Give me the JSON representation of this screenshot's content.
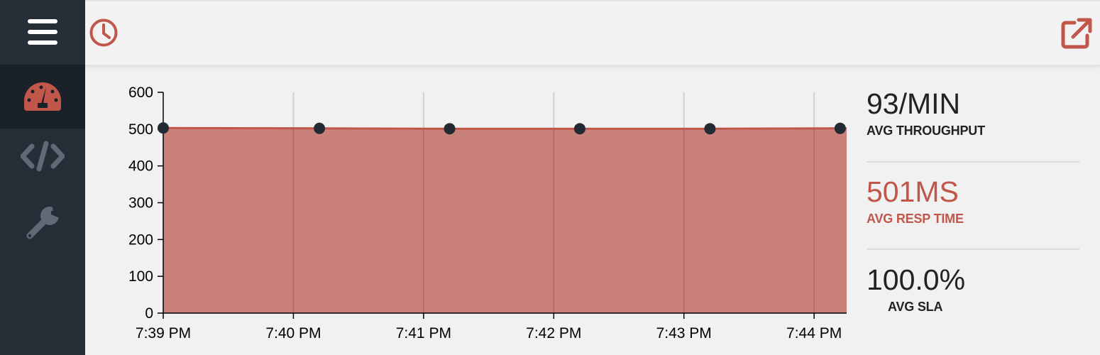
{
  "colors": {
    "accent": "#c0574a",
    "sidebar_bg": "#252d36",
    "sidebar_active_bg": "#1b2128",
    "area_fill": "#c9817a",
    "point": "#222a33",
    "muted_icon": "#606a74"
  },
  "sidebar": {
    "menu_icon": "hamburger-menu-icon",
    "items": [
      {
        "icon": "dashboard-gauge-icon",
        "active": true
      },
      {
        "icon": "code-icon",
        "active": false
      },
      {
        "icon": "wrench-icon",
        "active": false
      }
    ]
  },
  "header": {
    "left_icon": "clock-icon",
    "right_icon": "external-link-icon"
  },
  "chart_data": {
    "type": "area",
    "y_ticks": [
      0,
      100,
      200,
      300,
      400,
      500,
      600
    ],
    "ylim": [
      0,
      600
    ],
    "x_tick_labels": [
      "7:39 PM",
      "7:40 PM",
      "7:41 PM",
      "7:42 PM",
      "7:43 PM",
      "7:44 PM"
    ],
    "x_tick_minutes": [
      0,
      1,
      2,
      3,
      4,
      5
    ],
    "xlim_minutes": [
      0,
      5.25
    ],
    "series": [
      {
        "x_minutes": [
          0,
          1.2,
          2.2,
          3.2,
          4.2,
          5.2
        ],
        "values": [
          503,
          502,
          501,
          501,
          501,
          502
        ]
      }
    ],
    "grid": "vertical",
    "xlabel": "",
    "ylabel": ""
  },
  "stats": [
    {
      "value": "93/MIN",
      "label": "AVG THROUGHPUT",
      "highlight": false
    },
    {
      "value": "501MS",
      "label": "AVG RESP TIME",
      "highlight": true
    },
    {
      "value": "100.0%",
      "label": "AVG SLA",
      "highlight": false
    }
  ]
}
